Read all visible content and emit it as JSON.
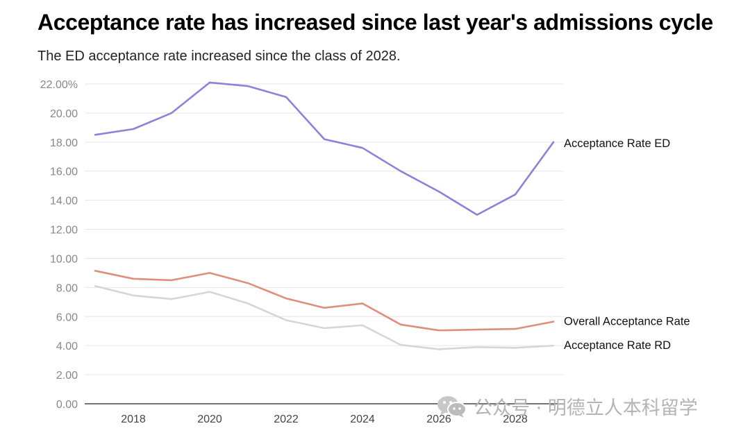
{
  "chart_data": {
    "type": "line",
    "title": "Acceptance rate has increased since last year's admissions cycle",
    "subtitle": "The ED acceptance rate increased since the class of 2028.",
    "x": [
      2017,
      2018,
      2019,
      2020,
      2021,
      2022,
      2023,
      2024,
      2025,
      2026,
      2027,
      2028,
      2029
    ],
    "x_tick_labels": [
      "2018",
      "2020",
      "2022",
      "2024",
      "2026",
      "2028"
    ],
    "x_tick_values": [
      2018,
      2020,
      2022,
      2024,
      2026,
      2028
    ],
    "y_tick_labels": [
      "22.00%",
      "20.00",
      "18.00",
      "16.00",
      "14.00",
      "12.00",
      "10.00",
      "8.00",
      "6.00",
      "4.00",
      "2.00",
      "0.00"
    ],
    "y_tick_values": [
      22,
      20,
      18,
      16,
      14,
      12,
      10,
      8,
      6,
      4,
      2,
      0
    ],
    "ylim": [
      0,
      22
    ],
    "xlim": [
      2017,
      2029
    ],
    "grid": true,
    "series": [
      {
        "name": "Acceptance Rate ED",
        "color": "#8f80dc",
        "values": [
          18.5,
          18.9,
          20.0,
          22.1,
          21.85,
          21.1,
          18.2,
          17.6,
          16.0,
          14.6,
          13.0,
          14.4,
          18.0
        ]
      },
      {
        "name": "Overall Acceptance Rate",
        "color": "#df8e7c",
        "values": [
          9.15,
          8.6,
          8.5,
          9.0,
          8.3,
          7.25,
          6.6,
          6.9,
          5.45,
          5.05,
          5.1,
          5.15,
          5.65
        ]
      },
      {
        "name": "Acceptance Rate RD",
        "color": "#d6d6d6",
        "values": [
          8.1,
          7.45,
          7.2,
          7.7,
          6.9,
          5.75,
          5.2,
          5.4,
          4.05,
          3.75,
          3.9,
          3.85,
          4.0
        ]
      }
    ]
  },
  "watermark": {
    "icon": "wechat-icon",
    "text": "公众号 · 明德立人本科留学"
  }
}
